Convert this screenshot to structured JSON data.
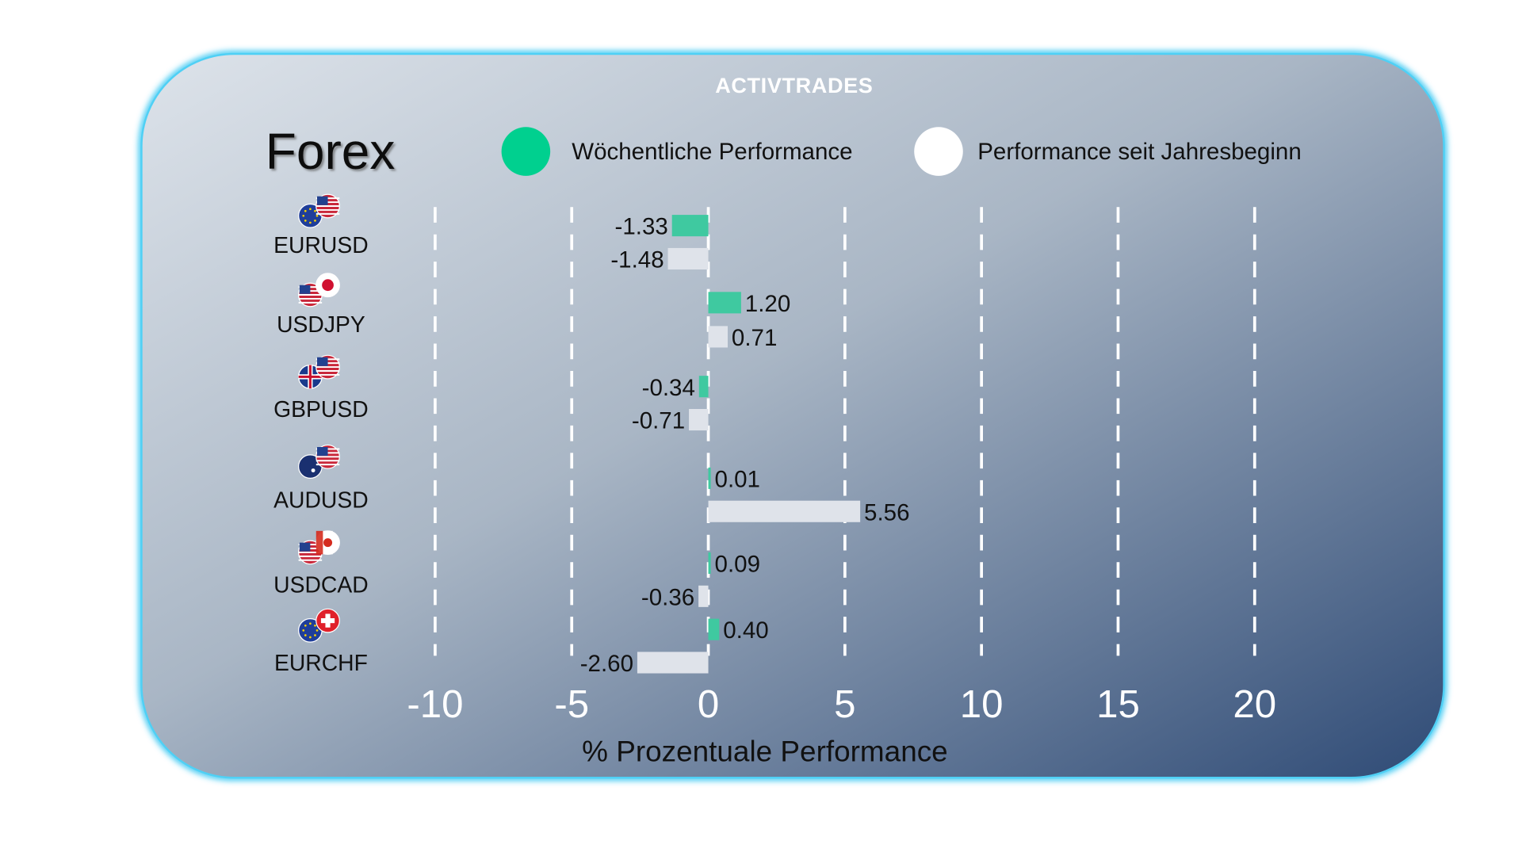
{
  "brand": {
    "logo_text": "ActivTrades"
  },
  "chart_data": {
    "type": "bar",
    "orientation": "horizontal",
    "title": "Forex",
    "xlabel": "% Prozentuale Performance",
    "xlim": [
      -10,
      20
    ],
    "xticks": [
      -10,
      -5,
      0,
      5,
      10,
      15,
      20
    ],
    "grid": "vertical dashed",
    "legend_position": "top",
    "categories": [
      "EURUSD",
      "USDJPY",
      "GBPUSD",
      "AUDUSD",
      "USDCAD",
      "EURCHF"
    ],
    "flags": [
      [
        "eu",
        "us"
      ],
      [
        "us",
        "jp"
      ],
      [
        "gb",
        "us"
      ],
      [
        "au",
        "us"
      ],
      [
        "us",
        "ca"
      ],
      [
        "eu",
        "ch"
      ]
    ],
    "series": [
      {
        "name": "Wöchentliche Performance",
        "color": "#00d08f",
        "bar_color": "#3fc9a0",
        "values": [
          -1.33,
          1.2,
          -0.34,
          0.01,
          0.09,
          0.4
        ],
        "labels": [
          "-1.33",
          "1.20",
          "-0.34",
          "0.01",
          "0.09",
          "0.40"
        ]
      },
      {
        "name": "Performance seit Jahresbeginn",
        "color": "#ffffff",
        "bar_color": "#dfe3ea",
        "values": [
          -1.48,
          0.71,
          -0.71,
          5.56,
          -0.36,
          -2.6
        ],
        "labels": [
          "-1.48",
          "0.71",
          "-0.71",
          "5.56",
          "-0.36",
          "-2.60"
        ]
      }
    ]
  },
  "colors": {
    "frame": "#35c6f2",
    "bg_light": "#d3dbe3",
    "bg_dark": "#34507a"
  }
}
